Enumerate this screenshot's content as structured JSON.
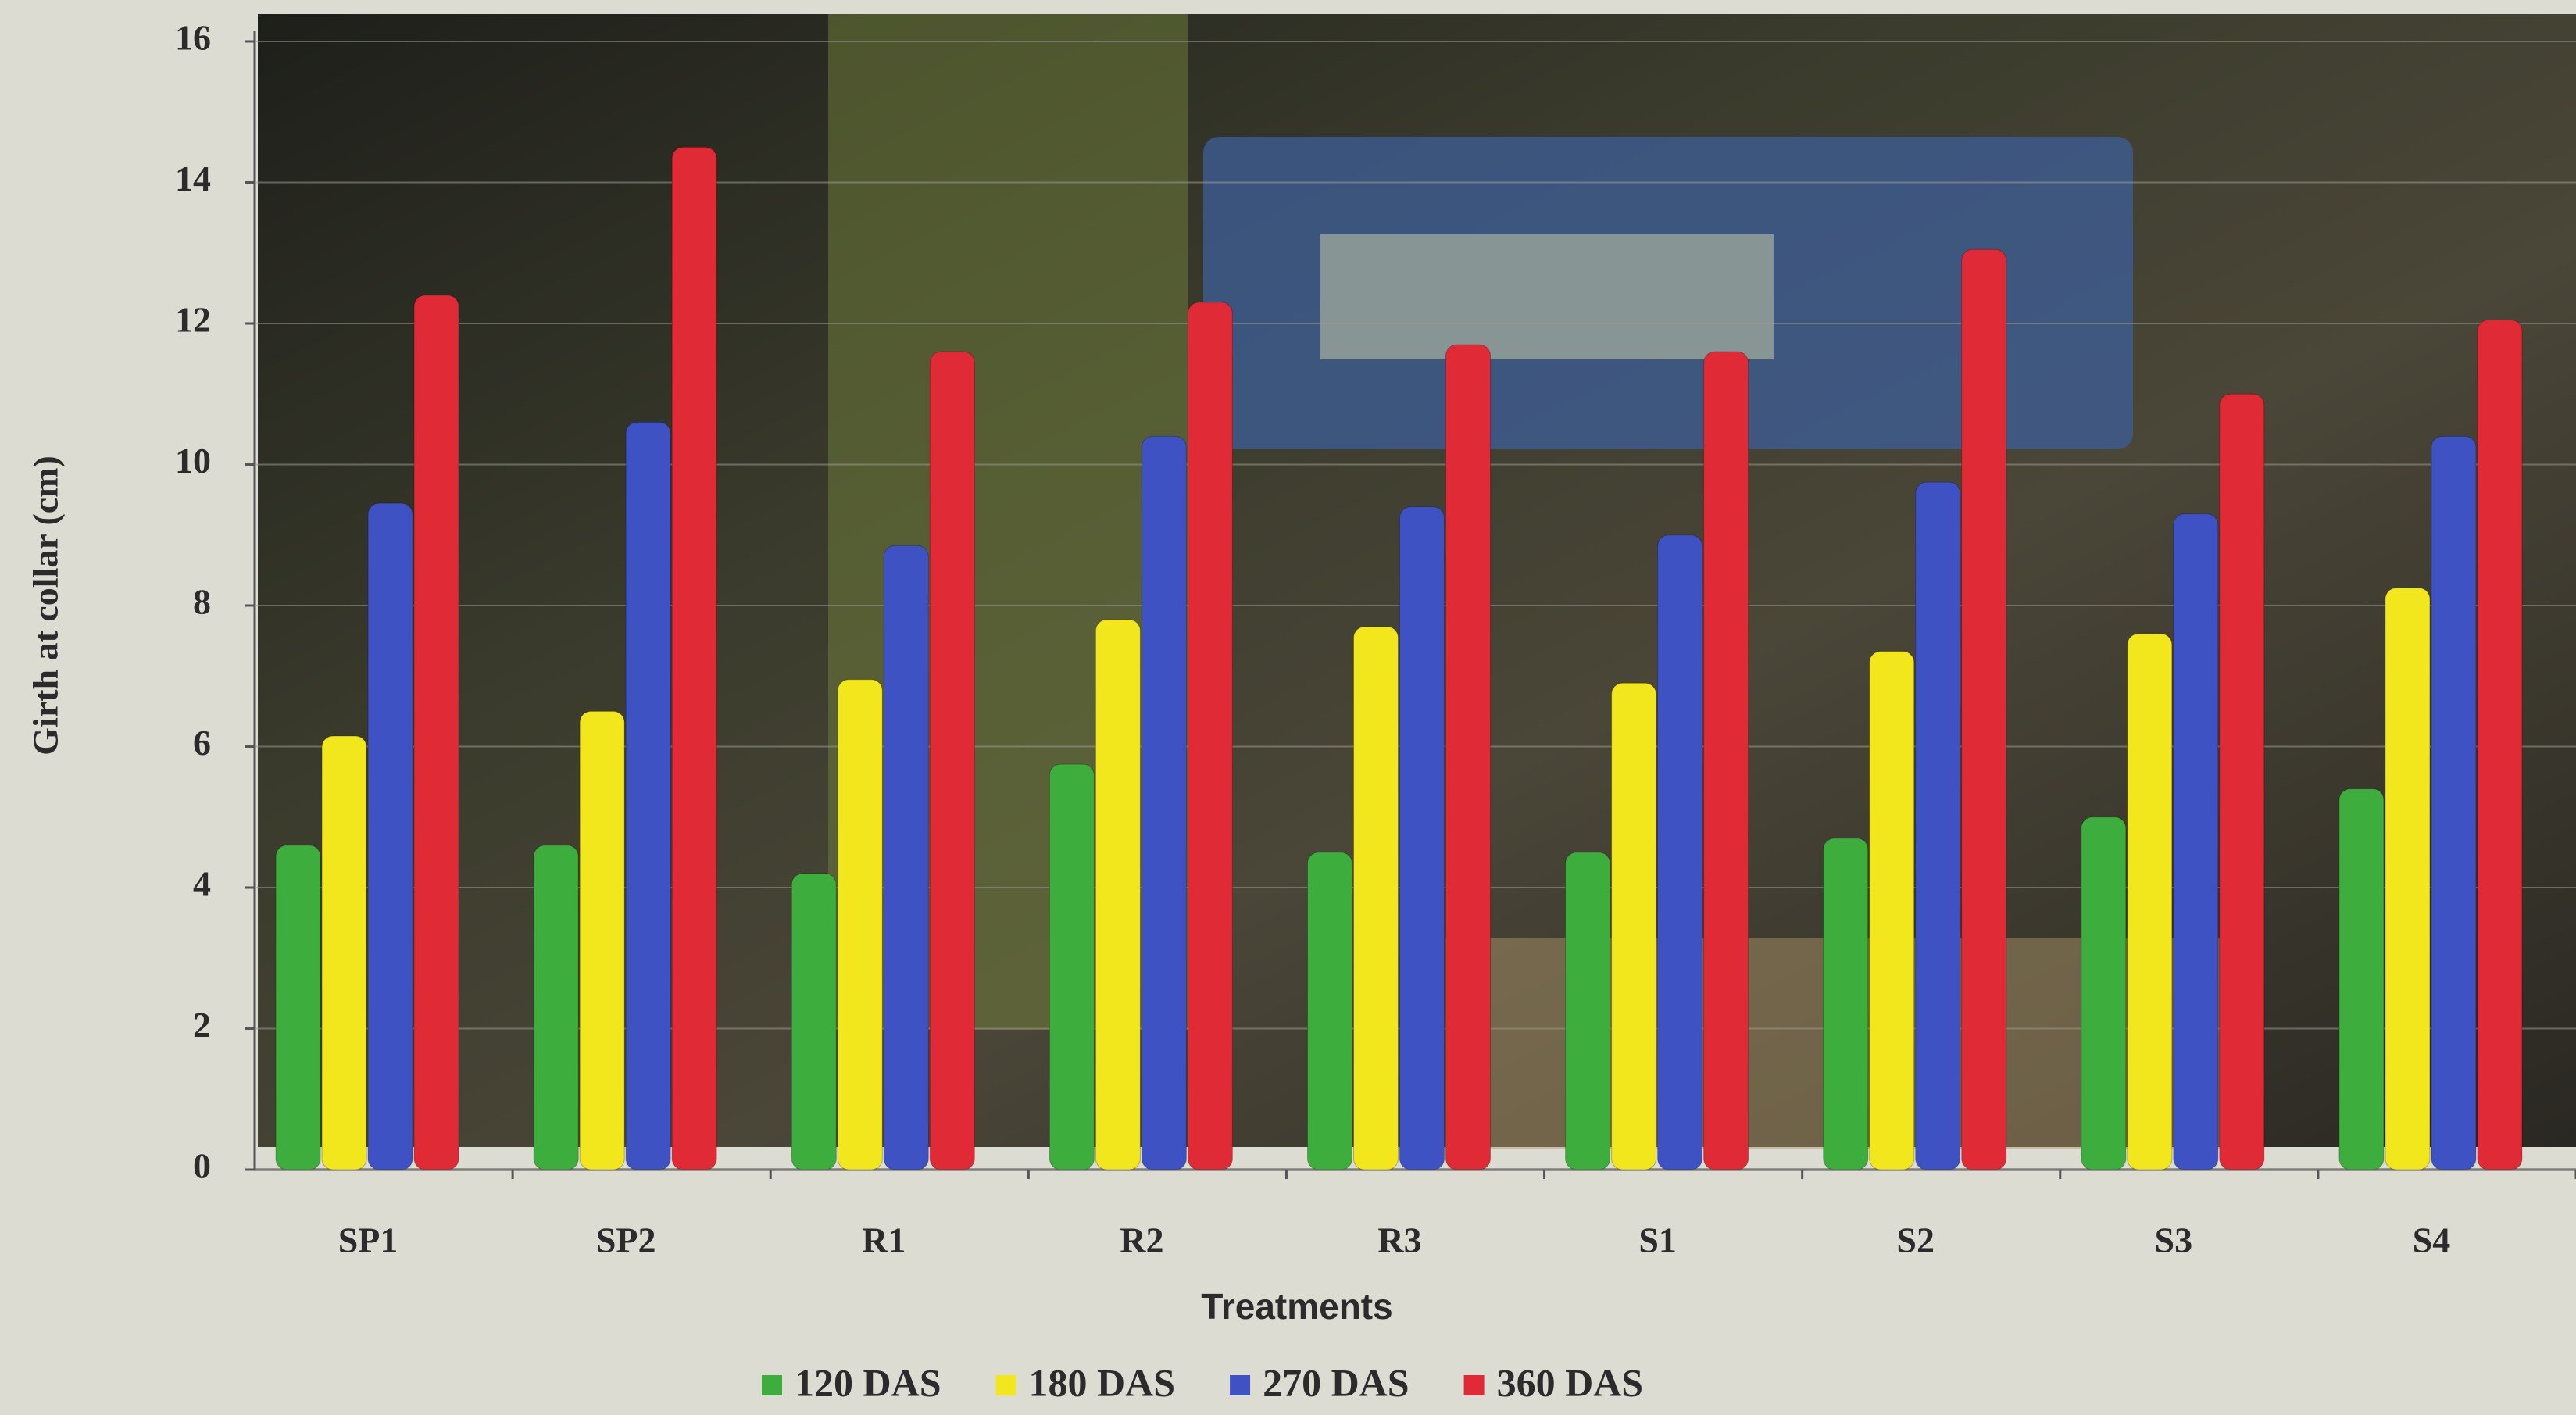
{
  "chart_data": {
    "type": "bar",
    "x_label": "Treatments",
    "y_label": "Girth at collar (cm)",
    "categories": [
      "SP1",
      "SP2",
      "R1",
      "R2",
      "R3",
      "S1",
      "S2",
      "S3",
      "S4"
    ],
    "series": [
      {
        "name": "120 DAS",
        "color": "#3dae3d",
        "values": [
          4.6,
          4.6,
          4.2,
          5.75,
          4.5,
          4.5,
          4.7,
          5.0,
          5.4
        ]
      },
      {
        "name": "180 DAS",
        "color": "#f2e61c",
        "values": [
          6.15,
          6.5,
          6.95,
          7.8,
          7.7,
          6.9,
          7.35,
          7.6,
          8.25
        ]
      },
      {
        "name": "270 DAS",
        "color": "#3f52c4",
        "values": [
          9.45,
          10.6,
          8.85,
          10.4,
          9.4,
          9.0,
          9.75,
          9.3,
          10.4
        ]
      },
      {
        "name": "360 DAS",
        "color": "#e02a36",
        "values": [
          12.4,
          14.5,
          11.6,
          12.3,
          11.7,
          11.6,
          13.05,
          11.0,
          12.05
        ]
      }
    ],
    "ylim": [
      0,
      16
    ],
    "yticks": [
      0,
      2,
      4,
      6,
      8,
      10,
      12,
      14,
      16
    ],
    "grid": true
  }
}
